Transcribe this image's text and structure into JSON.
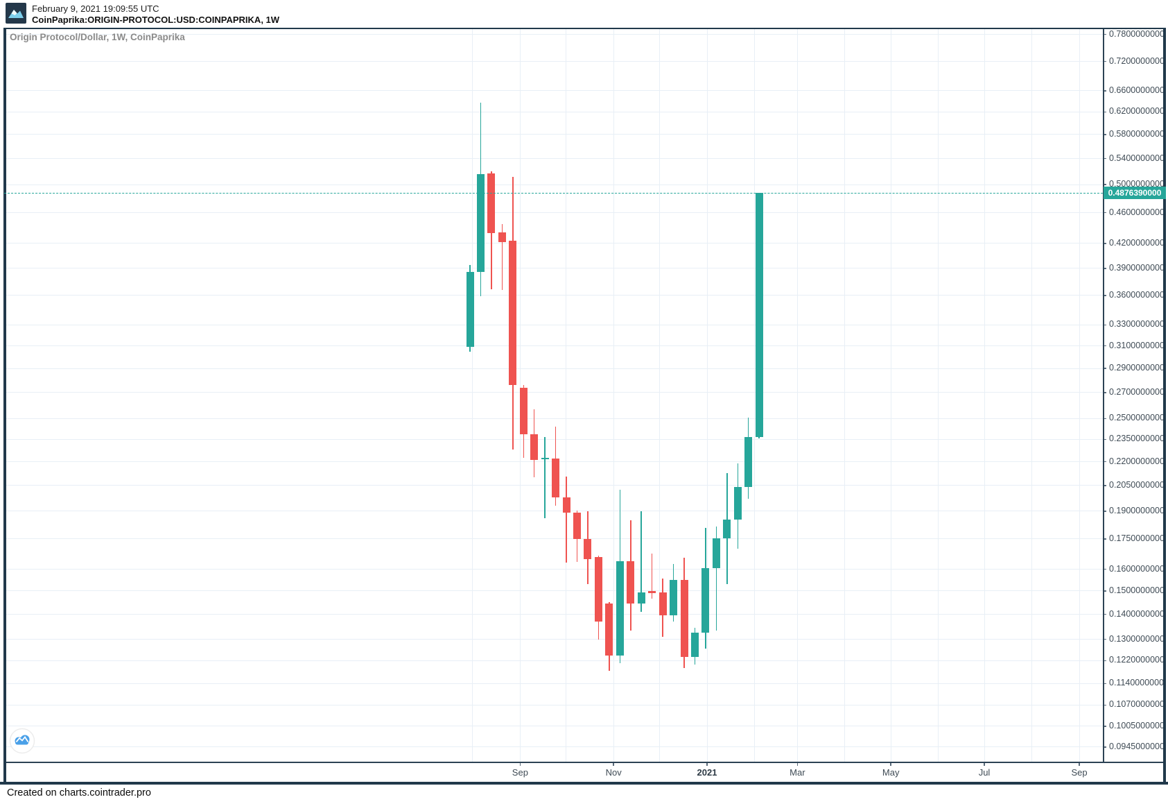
{
  "header": {
    "timestamp": "February 9, 2021 19:09:55 UTC",
    "symbol": "CoinPaprika:ORIGIN-PROTOCOL:USD:COINPAPRIKA, 1W"
  },
  "footer": {
    "credit": "Created on charts.cointrader.pro"
  },
  "icons": {
    "header_logo": "cointrader-mountain-logo",
    "watermark": "cointrader-cloud-chart-logo"
  },
  "colors": {
    "up": "#26a69a",
    "down": "#ef5350",
    "grid": "#e8eff6",
    "axis_text": "#3f4b55",
    "tick": "#5a6b7a",
    "border_dark": "#21394b",
    "price_line": "#26a69a",
    "price_box_bg": "#26a69a",
    "price_box_text": "#ffffff",
    "title_text": "#8a8a8a",
    "watermark_blue": "#4aa0e8",
    "logo_bg": "#24384a",
    "logo_mountain": "#7ecfec"
  },
  "chart_data": {
    "type": "candlestick",
    "title": "Origin Protocol/Dollar, 1W, CoinPaprika",
    "symbol": "ORIGIN-PROTOCOL/USD",
    "exchange": "CoinPaprika",
    "interval": "1W",
    "scale": "log",
    "grid": true,
    "ylim": [
      0.09,
      0.8
    ],
    "last_price": "0.4876390000",
    "last_price_value": 0.487639,
    "y_axis_ticks": [
      "0.7800000000",
      "0.7200000000",
      "0.6600000000",
      "0.6200000000",
      "0.5800000000",
      "0.5400000000",
      "0.5000000000",
      "0.4600000000",
      "0.4200000000",
      "0.3900000000",
      "0.3600000000",
      "0.3300000000",
      "0.3100000000",
      "0.2900000000",
      "0.2700000000",
      "0.2500000000",
      "0.2350000000",
      "0.2200000000",
      "0.2050000000",
      "0.1900000000",
      "0.1750000000",
      "0.1600000000",
      "0.1500000000",
      "0.1400000000",
      "0.1300000000",
      "0.1220000000",
      "0.1140000000",
      "0.1070000000",
      "0.1005000000",
      "0.0945000000"
    ],
    "x_axis_ticks": [
      {
        "label": "Sep",
        "date": "2020-09-01",
        "bold": false
      },
      {
        "label": "Nov",
        "date": "2020-11-01",
        "bold": false
      },
      {
        "label": "2021",
        "date": "2021-01-01",
        "bold": true
      },
      {
        "label": "Mar",
        "date": "2021-03-01",
        "bold": false
      },
      {
        "label": "May",
        "date": "2021-05-01",
        "bold": false
      },
      {
        "label": "Jul",
        "date": "2021-07-01",
        "bold": false
      },
      {
        "label": "Sep",
        "date": "2021-09-01",
        "bold": false
      }
    ],
    "grid_months": [
      "2020-08-01",
      "2020-09-01",
      "2020-10-01",
      "2020-11-01",
      "2020-12-01",
      "2021-01-01",
      "2021-02-01",
      "2021-03-01",
      "2021-04-01",
      "2021-05-01",
      "2021-06-01",
      "2021-07-01",
      "2021-08-01",
      "2021-09-01"
    ],
    "candles": [
      {
        "date": "2020-08-03",
        "o": 0.309,
        "h": 0.394,
        "l": 0.305,
        "c": 0.386
      },
      {
        "date": "2020-08-10",
        "o": 0.386,
        "h": 0.637,
        "l": 0.359,
        "c": 0.516
      },
      {
        "date": "2020-08-17",
        "o": 0.517,
        "h": 0.52,
        "l": 0.367,
        "c": 0.433
      },
      {
        "date": "2020-08-24",
        "o": 0.434,
        "h": 0.445,
        "l": 0.366,
        "c": 0.422
      },
      {
        "date": "2020-08-31",
        "o": 0.423,
        "h": 0.512,
        "l": 0.228,
        "c": 0.276
      },
      {
        "date": "2020-09-07",
        "o": 0.274,
        "h": 0.276,
        "l": 0.2225,
        "c": 0.2385
      },
      {
        "date": "2020-09-14",
        "o": 0.2385,
        "h": 0.257,
        "l": 0.21,
        "c": 0.221
      },
      {
        "date": "2020-09-21",
        "o": 0.2215,
        "h": 0.2365,
        "l": 0.186,
        "c": 0.2225
      },
      {
        "date": "2020-09-28",
        "o": 0.222,
        "h": 0.244,
        "l": 0.193,
        "c": 0.198
      },
      {
        "date": "2020-10-05",
        "o": 0.198,
        "h": 0.2105,
        "l": 0.163,
        "c": 0.189
      },
      {
        "date": "2020-10-12",
        "o": 0.189,
        "h": 0.1905,
        "l": 0.1635,
        "c": 0.175
      },
      {
        "date": "2020-10-19",
        "o": 0.175,
        "h": 0.19,
        "l": 0.153,
        "c": 0.165
      },
      {
        "date": "2020-10-26",
        "o": 0.166,
        "h": 0.1665,
        "l": 0.13,
        "c": 0.137
      },
      {
        "date": "2020-11-02",
        "o": 0.1445,
        "h": 0.145,
        "l": 0.1185,
        "c": 0.124
      },
      {
        "date": "2020-11-09",
        "o": 0.124,
        "h": 0.2025,
        "l": 0.121,
        "c": 0.164
      },
      {
        "date": "2020-11-16",
        "o": 0.164,
        "h": 0.185,
        "l": 0.1335,
        "c": 0.1445
      },
      {
        "date": "2020-11-23",
        "o": 0.1445,
        "h": 0.19,
        "l": 0.141,
        "c": 0.1495
      },
      {
        "date": "2020-11-30",
        "o": 0.15,
        "h": 0.1675,
        "l": 0.1465,
        "c": 0.149
      },
      {
        "date": "2020-12-07",
        "o": 0.1495,
        "h": 0.1555,
        "l": 0.131,
        "c": 0.1395
      },
      {
        "date": "2020-12-14",
        "o": 0.1395,
        "h": 0.1625,
        "l": 0.137,
        "c": 0.155
      },
      {
        "date": "2020-12-21",
        "o": 0.155,
        "h": 0.1655,
        "l": 0.1195,
        "c": 0.1235
      },
      {
        "date": "2020-12-28",
        "o": 0.1235,
        "h": 0.1345,
        "l": 0.1205,
        "c": 0.1325
      },
      {
        "date": "2021-01-04",
        "o": 0.1325,
        "h": 0.181,
        "l": 0.1265,
        "c": 0.1605
      },
      {
        "date": "2021-01-11",
        "o": 0.1605,
        "h": 0.1815,
        "l": 0.1335,
        "c": 0.1755
      },
      {
        "date": "2021-01-18",
        "o": 0.1755,
        "h": 0.2125,
        "l": 0.153,
        "c": 0.1855
      },
      {
        "date": "2021-01-25",
        "o": 0.1855,
        "h": 0.219,
        "l": 0.17,
        "c": 0.204
      },
      {
        "date": "2021-02-01",
        "o": 0.204,
        "h": 0.2505,
        "l": 0.197,
        "c": 0.2365
      },
      {
        "date": "2021-02-08",
        "o": 0.2365,
        "h": 0.487639,
        "l": 0.2355,
        "c": 0.487639
      }
    ]
  }
}
